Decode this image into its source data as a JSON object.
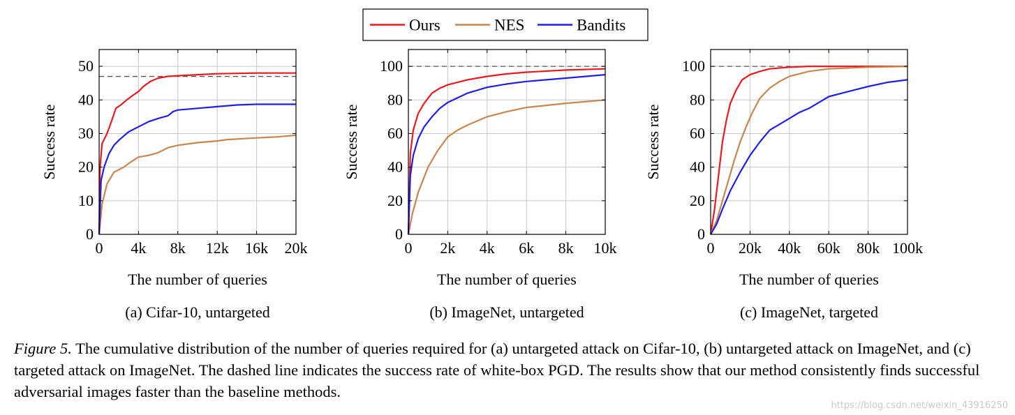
{
  "legend": {
    "placement": "top-center",
    "entries": [
      {
        "label": "Ours",
        "color": "#e8191f"
      },
      {
        "label": "NES",
        "color": "#c8864e"
      },
      {
        "label": "Bandits",
        "color": "#1f1fe6"
      }
    ]
  },
  "chart_data": [
    {
      "type": "line",
      "subtitle": "(a) Cifar-10, untargeted",
      "xlabel": "The number of queries",
      "ylabel": "Success rate",
      "xlim": [
        0,
        20000
      ],
      "ylim": [
        0,
        55
      ],
      "xticks": [
        0,
        4000,
        8000,
        12000,
        16000,
        20000
      ],
      "xtick_labels": [
        "0",
        "4k",
        "8k",
        "12k",
        "16k",
        "20k"
      ],
      "yticks": [
        0,
        10,
        20,
        30,
        40,
        50
      ],
      "ytick_labels": [
        "0",
        "10",
        "20",
        "30",
        "40",
        "50"
      ],
      "grid": true,
      "reference_line": {
        "y": 47,
        "style": "dashed",
        "meaning": "white-box PGD"
      },
      "series": [
        {
          "name": "Ours",
          "color": "#e8191f",
          "points": [
            [
              0,
              0
            ],
            [
              100,
              20
            ],
            [
              300,
              27
            ],
            [
              800,
              30
            ],
            [
              1300,
              34
            ],
            [
              1700,
              37.5
            ],
            [
              2200,
              38.5
            ],
            [
              2800,
              40
            ],
            [
              3500,
              41.5
            ],
            [
              4000,
              42.5
            ],
            [
              4500,
              44
            ],
            [
              5200,
              45.5
            ],
            [
              6000,
              46.5
            ],
            [
              7000,
              47
            ],
            [
              8000,
              47.2
            ],
            [
              10000,
              47.5
            ],
            [
              12000,
              47.8
            ],
            [
              16000,
              48
            ],
            [
              20000,
              48
            ]
          ]
        },
        {
          "name": "NES",
          "color": "#c8864e",
          "points": [
            [
              0,
              0
            ],
            [
              300,
              9
            ],
            [
              800,
              15
            ],
            [
              1500,
              18.5
            ],
            [
              2500,
              20
            ],
            [
              3200,
              21.5
            ],
            [
              4000,
              23
            ],
            [
              5000,
              23.5
            ],
            [
              6000,
              24.3
            ],
            [
              7000,
              25.8
            ],
            [
              8000,
              26.5
            ],
            [
              10000,
              27.3
            ],
            [
              12000,
              27.8
            ],
            [
              13000,
              28.2
            ],
            [
              16000,
              28.7
            ],
            [
              18000,
              29
            ],
            [
              20000,
              29.5
            ]
          ]
        },
        {
          "name": "Bandits",
          "color": "#1f1fe6",
          "points": [
            [
              0,
              0
            ],
            [
              200,
              16
            ],
            [
              500,
              20
            ],
            [
              1000,
              24
            ],
            [
              1500,
              26.5
            ],
            [
              2000,
              28
            ],
            [
              3000,
              30.5
            ],
            [
              4000,
              32
            ],
            [
              5000,
              33.5
            ],
            [
              6000,
              34.5
            ],
            [
              7000,
              35.3
            ],
            [
              7500,
              36.5
            ],
            [
              8000,
              37
            ],
            [
              10000,
              37.5
            ],
            [
              12000,
              38
            ],
            [
              14000,
              38.5
            ],
            [
              16000,
              38.7
            ],
            [
              20000,
              38.7
            ]
          ]
        }
      ]
    },
    {
      "type": "line",
      "subtitle": "(b) ImageNet, untargeted",
      "xlabel": "The number of queries",
      "ylabel": "Success rate",
      "xlim": [
        0,
        10000
      ],
      "ylim": [
        0,
        110
      ],
      "xticks": [
        0,
        2000,
        4000,
        6000,
        8000,
        10000
      ],
      "xtick_labels": [
        "0",
        "2k",
        "4k",
        "6k",
        "8k",
        "10k"
      ],
      "yticks": [
        0,
        20,
        40,
        60,
        80,
        100
      ],
      "ytick_labels": [
        "0",
        "20",
        "40",
        "60",
        "80",
        "100"
      ],
      "grid": true,
      "reference_line": {
        "y": 100,
        "style": "dashed",
        "meaning": "white-box PGD"
      },
      "series": [
        {
          "name": "Ours",
          "color": "#e8191f",
          "points": [
            [
              0,
              0
            ],
            [
              100,
              48
            ],
            [
              250,
              62
            ],
            [
              500,
              72
            ],
            [
              800,
              78
            ],
            [
              1200,
              84
            ],
            [
              1600,
              87
            ],
            [
              2000,
              89
            ],
            [
              3000,
              92
            ],
            [
              4000,
              94
            ],
            [
              5000,
              95.5
            ],
            [
              6000,
              96.5
            ],
            [
              8000,
              97.8
            ],
            [
              10000,
              98.5
            ]
          ]
        },
        {
          "name": "NES",
          "color": "#c8864e",
          "points": [
            [
              0,
              0
            ],
            [
              200,
              12
            ],
            [
              500,
              25
            ],
            [
              1000,
              40
            ],
            [
              1500,
              50
            ],
            [
              2000,
              58
            ],
            [
              2500,
              62
            ],
            [
              3000,
              65
            ],
            [
              4000,
              70
            ],
            [
              5000,
              73
            ],
            [
              6000,
              75.5
            ],
            [
              8000,
              78
            ],
            [
              10000,
              80
            ]
          ]
        },
        {
          "name": "Bandits",
          "color": "#1f1fe6",
          "points": [
            [
              0,
              0
            ],
            [
              100,
              35
            ],
            [
              250,
              47
            ],
            [
              500,
              57
            ],
            [
              800,
              64
            ],
            [
              1200,
              70
            ],
            [
              1600,
              75
            ],
            [
              2000,
              78.5
            ],
            [
              3000,
              84
            ],
            [
              4000,
              87.5
            ],
            [
              5000,
              89.5
            ],
            [
              6000,
              91
            ],
            [
              8000,
              93
            ],
            [
              10000,
              95
            ]
          ]
        }
      ]
    },
    {
      "type": "line",
      "subtitle": "(c) ImageNet, targeted",
      "xlabel": "The number of queries",
      "ylabel": "Success rate",
      "xlim": [
        0,
        100000
      ],
      "ylim": [
        0,
        110
      ],
      "xticks": [
        0,
        20000,
        40000,
        60000,
        80000,
        100000
      ],
      "xtick_labels": [
        "0",
        "20k",
        "40k",
        "60k",
        "80k",
        "100k"
      ],
      "yticks": [
        0,
        20,
        40,
        60,
        80,
        100
      ],
      "ytick_labels": [
        "0",
        "20",
        "40",
        "60",
        "80",
        "100"
      ],
      "grid": true,
      "reference_line": {
        "y": 100,
        "style": "dashed",
        "meaning": "white-box PGD"
      },
      "series": [
        {
          "name": "Ours",
          "color": "#e8191f",
          "points": [
            [
              0,
              0
            ],
            [
              2000,
              15
            ],
            [
              4000,
              35
            ],
            [
              6000,
              55
            ],
            [
              8000,
              68
            ],
            [
              10000,
              78
            ],
            [
              13000,
              86
            ],
            [
              16000,
              92
            ],
            [
              20000,
              95
            ],
            [
              25000,
              97
            ],
            [
              30000,
              98.5
            ],
            [
              40000,
              99.5
            ],
            [
              50000,
              100
            ],
            [
              100000,
              100
            ]
          ]
        },
        {
          "name": "NES",
          "color": "#c8864e",
          "points": [
            [
              0,
              0
            ],
            [
              3000,
              8
            ],
            [
              6000,
              20
            ],
            [
              9000,
              32
            ],
            [
              12000,
              44
            ],
            [
              15000,
              55
            ],
            [
              18000,
              64
            ],
            [
              21000,
              72
            ],
            [
              25000,
              81
            ],
            [
              30000,
              87
            ],
            [
              35000,
              91
            ],
            [
              40000,
              94
            ],
            [
              50000,
              97
            ],
            [
              60000,
              98.5
            ],
            [
              80000,
              99.5
            ],
            [
              100000,
              100
            ]
          ]
        },
        {
          "name": "Bandits",
          "color": "#1f1fe6",
          "points": [
            [
              0,
              0
            ],
            [
              3000,
              6
            ],
            [
              6000,
              15
            ],
            [
              10000,
              26
            ],
            [
              15000,
              37
            ],
            [
              20000,
              47
            ],
            [
              25000,
              55
            ],
            [
              30000,
              62
            ],
            [
              40000,
              69
            ],
            [
              45000,
              72.5
            ],
            [
              50000,
              75
            ],
            [
              55000,
              78.5
            ],
            [
              60000,
              82
            ],
            [
              70000,
              85
            ],
            [
              80000,
              88
            ],
            [
              90000,
              90.5
            ],
            [
              100000,
              92
            ]
          ]
        }
      ]
    }
  ],
  "caption": {
    "label": "Figure 5.",
    "text": " The cumulative distribution of the number of queries required for (a) untargeted attack on Cifar-10, (b) untargeted attack on ImageNet, and (c) targeted attack on ImageNet. The dashed line indicates the success rate of white-box PGD. The results show that our method consistently finds successful adversarial images faster than the baseline methods."
  },
  "watermark": "https://blog.csdn.net/weixin_43916250"
}
